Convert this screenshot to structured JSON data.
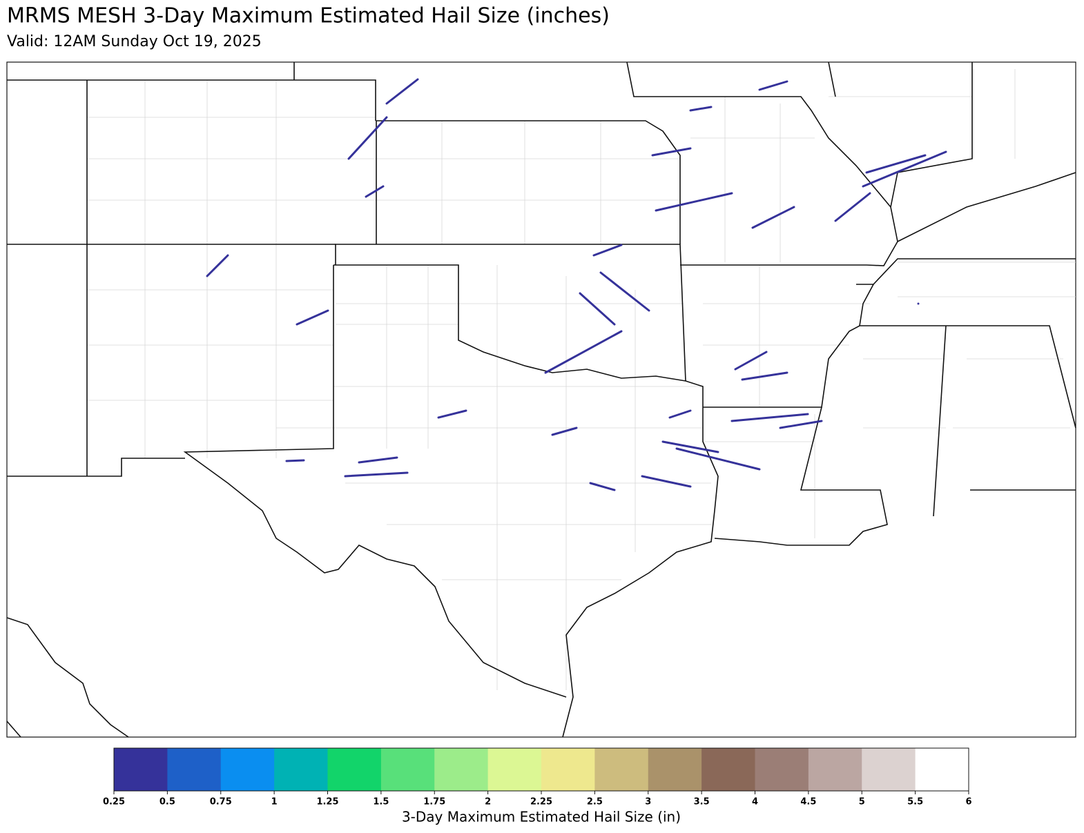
{
  "title": "MRMS MESH 3-Day Maximum Estimated Hail Size (inches)",
  "subtitle": "Valid: 12AM Sunday Oct 19, 2025",
  "colorbar": {
    "label": "3-Day Maximum Estimated Hail Size (in)",
    "ticks": [
      0.25,
      0.5,
      0.75,
      1,
      1.25,
      1.5,
      1.75,
      2,
      2.25,
      2.5,
      3,
      3.5,
      4,
      4.5,
      5,
      5.5,
      6
    ],
    "colors": [
      "#35329a",
      "#1e60c8",
      "#0a8ef0",
      "#00b2b4",
      "#12d46a",
      "#58e07a",
      "#9cec8a",
      "#dcf794",
      "#eee88e",
      "#cdbc7e",
      "#aa926a",
      "#8a6858",
      "#9b7e76",
      "#bba6a2",
      "#dcd2d0",
      "#ffffff"
    ]
  }
}
